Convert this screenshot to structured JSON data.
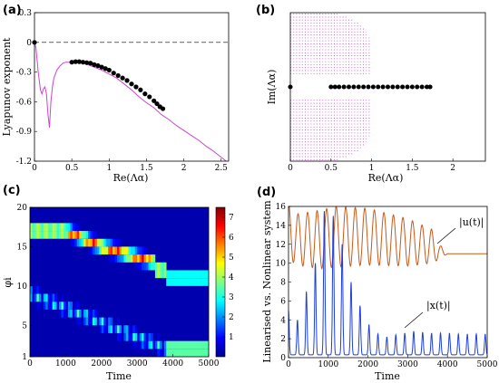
{
  "panels": {
    "a": "(a)",
    "b": "(b)",
    "c": "(c)",
    "d": "(d)"
  },
  "colors": {
    "magenta": "#cc44cc",
    "orange": "#c65a1a",
    "blue": "#1f3fdd",
    "black": "#000000"
  },
  "chart_data": [
    {
      "id": "a",
      "type": "line",
      "xlabel": "Re(Λα)",
      "ylabel": "Lyapunov exponent",
      "xlim": [
        0,
        2.6
      ],
      "ylim": [
        -1.2,
        0.3
      ],
      "xticks": [
        "0",
        "0.5",
        "1",
        "1.5",
        "2",
        "2.5"
      ],
      "xtick_values": [
        0,
        0.5,
        1,
        1.5,
        2,
        2.5
      ],
      "yticks": [
        "0.3",
        "0",
        "-0.3",
        "-0.6",
        "-0.9",
        "-1.2"
      ],
      "ytick_values": [
        0.3,
        0,
        -0.3,
        -0.6,
        -0.9,
        -1.2
      ],
      "reference_line_y": 0,
      "curve": {
        "x": [
          0,
          0.02,
          0.05,
          0.08,
          0.1,
          0.12,
          0.14,
          0.16,
          0.18,
          0.2,
          0.22,
          0.24,
          0.26,
          0.3,
          0.34,
          0.38,
          0.42,
          0.46,
          0.5,
          0.55,
          0.6,
          0.7,
          0.8,
          0.9,
          1.0,
          1.1,
          1.2,
          1.3,
          1.4,
          1.5,
          1.6,
          1.7,
          1.8,
          1.9,
          2.0,
          2.1,
          2.2,
          2.3,
          2.4,
          2.5,
          2.6
        ],
        "y": [
          0,
          -0.05,
          -0.3,
          -0.48,
          -0.52,
          -0.47,
          -0.45,
          -0.52,
          -0.72,
          -0.86,
          -0.6,
          -0.45,
          -0.36,
          -0.28,
          -0.24,
          -0.21,
          -0.2,
          -0.2,
          -0.205,
          -0.2,
          -0.2,
          -0.22,
          -0.25,
          -0.28,
          -0.32,
          -0.36,
          -0.42,
          -0.48,
          -0.55,
          -0.61,
          -0.66,
          -0.73,
          -0.78,
          -0.84,
          -0.89,
          -0.94,
          -0.99,
          -1.05,
          -1.1,
          -1.16,
          -1.22
        ]
      },
      "points": {
        "x": [
          0,
          0.5,
          0.55,
          0.6,
          0.65,
          0.7,
          0.75,
          0.8,
          0.85,
          0.9,
          0.95,
          1.0,
          1.06,
          1.12,
          1.18,
          1.24,
          1.3,
          1.36,
          1.42,
          1.48,
          1.54,
          1.6,
          1.64,
          1.68,
          1.72
        ],
        "y": [
          0,
          -0.2,
          -0.195,
          -0.195,
          -0.2,
          -0.205,
          -0.21,
          -0.225,
          -0.235,
          -0.25,
          -0.265,
          -0.28,
          -0.31,
          -0.335,
          -0.36,
          -0.385,
          -0.42,
          -0.45,
          -0.48,
          -0.52,
          -0.55,
          -0.59,
          -0.62,
          -0.65,
          -0.67
        ]
      }
    },
    {
      "id": "b",
      "type": "scatter",
      "xlabel": "Re(Λα)",
      "ylabel": "Im(Λα)",
      "xlim": [
        0,
        2.4
      ],
      "ylim": [
        -1,
        1
      ],
      "xticks": [
        "0",
        "0.5",
        "1",
        "1.5",
        "2"
      ],
      "xtick_values": [
        0,
        0.5,
        1,
        1.5,
        2
      ],
      "points": {
        "x": [
          0,
          0.5,
          0.55,
          0.6,
          0.66,
          0.72,
          0.78,
          0.84,
          0.9,
          0.96,
          1.02,
          1.08,
          1.14,
          1.2,
          1.26,
          1.32,
          1.38,
          1.44,
          1.5,
          1.56,
          1.62,
          1.68,
          1.72
        ],
        "y": [
          0,
          0,
          0,
          0,
          0,
          0,
          0,
          0,
          0,
          0,
          0,
          0,
          0,
          0,
          0,
          0,
          0,
          0,
          0,
          0,
          0,
          0,
          0
        ]
      },
      "spectrum_region": {
        "upper_edge": [
          [
            0,
            1.0
          ],
          [
            0.25,
            1.0
          ],
          [
            0.5,
            1.0
          ],
          [
            0.7,
            0.95
          ],
          [
            0.85,
            0.85
          ],
          [
            0.95,
            0.72
          ],
          [
            1.0,
            0.6
          ],
          [
            1.0,
            0.15
          ]
        ],
        "lower_edge": [
          [
            0,
            -1.0
          ],
          [
            0.25,
            -1.0
          ],
          [
            0.5,
            -1.0
          ],
          [
            0.7,
            -0.95
          ],
          [
            0.85,
            -0.85
          ],
          [
            0.95,
            -0.72
          ],
          [
            1.0,
            -0.6
          ],
          [
            1.0,
            -0.15
          ]
        ]
      }
    },
    {
      "id": "c",
      "type": "heatmap",
      "xlabel": "Time",
      "ylabel": "φi",
      "xlim": [
        0,
        5000
      ],
      "ylim": [
        1,
        20
      ],
      "xticks": [
        "0",
        "1000",
        "2000",
        "3000",
        "4000",
        "5000"
      ],
      "xtick_values": [
        0,
        1000,
        2000,
        3000,
        4000,
        5000
      ],
      "yticks": [
        "1",
        "5",
        "10",
        "15",
        "20"
      ],
      "ytick_values": [
        1,
        5,
        10,
        15,
        20
      ],
      "colorbar": {
        "min": 0,
        "max": 7.5,
        "ticks": [
          "1",
          "2",
          "3",
          "4",
          "5",
          "6",
          "7"
        ],
        "tick_values": [
          1,
          2,
          3,
          4,
          5,
          6,
          7
        ]
      }
    },
    {
      "id": "d",
      "type": "line",
      "xlabel": "Time",
      "ylabel": "Linearised vs. Nonlinear system",
      "xlim": [
        0,
        5000
      ],
      "ylim": [
        0,
        16
      ],
      "xticks": [
        "0",
        "1000",
        "2000",
        "3000",
        "4000",
        "5000"
      ],
      "xtick_values": [
        0,
        1000,
        2000,
        3000,
        4000,
        5000
      ],
      "yticks": [
        "0",
        "2",
        "4",
        "6",
        "8",
        "10",
        "12",
        "14",
        "16"
      ],
      "ytick_values": [
        0,
        2,
        4,
        6,
        8,
        10,
        12,
        14,
        16
      ],
      "annotations": [
        "|u(t)|",
        "|x(t)|"
      ],
      "series": [
        {
          "name": "|u(t)|",
          "period": 240,
          "envelope_t": [
            0,
            200,
            800,
            1200,
            2000,
            3000,
            3600,
            3800,
            4000,
            5000
          ],
          "center": [
            13.5,
            12.5,
            12.5,
            12.8,
            12.8,
            12.2,
            11.8,
            11.2,
            11.0,
            11.0
          ],
          "amplitude": [
            3.0,
            2.7,
            3.1,
            3.2,
            3.0,
            2.5,
            1.8,
            0.8,
            0.0,
            0.0
          ]
        },
        {
          "name": "|x(t)|",
          "period": 225,
          "peak_t": [
            0,
            225,
            450,
            675,
            900,
            1125,
            1350,
            1575,
            1800,
            2025,
            2250,
            2475,
            2700,
            2925,
            3150,
            3375,
            3600,
            3825,
            4050,
            4275,
            4500,
            4725,
            4950
          ],
          "peak_values": [
            5,
            4,
            7,
            10,
            15.5,
            15,
            12,
            8,
            5.5,
            3.5,
            2.5,
            2.2,
            2.4,
            2.6,
            2.8,
            2.7,
            2.6,
            2.6,
            2.6,
            2.5,
            2.5,
            2.5,
            2.5
          ],
          "baseline": 0.3
        }
      ]
    }
  ]
}
